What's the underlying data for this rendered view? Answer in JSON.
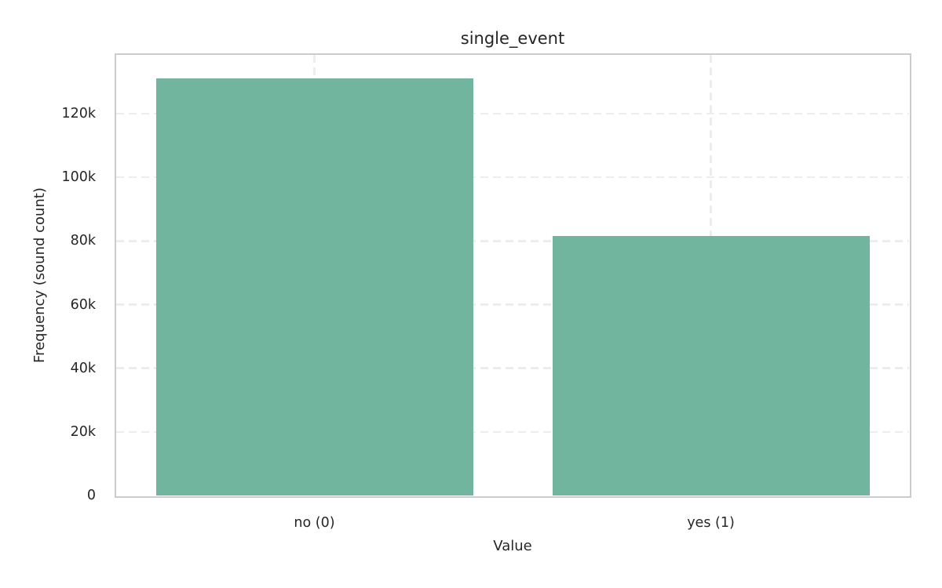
{
  "chart_data": {
    "type": "bar",
    "title": "single_event",
    "xlabel": "Value",
    "ylabel": "Frequency (sound count)",
    "categories": [
      "no (0)",
      "yes (1)"
    ],
    "values": [
      131000,
      81500
    ],
    "ylim": [
      0,
      138500
    ],
    "yticks": [
      0,
      20000,
      40000,
      60000,
      80000,
      100000,
      120000
    ],
    "ytick_labels": [
      "0",
      "20k",
      "40k",
      "60k",
      "80k",
      "100k",
      "120k"
    ],
    "grid": true,
    "grid_style": "dashed",
    "bar_width_fraction": 0.8,
    "colors": {
      "bar": "#71b59f",
      "grid": "#ededed",
      "spine": "#cccccc",
      "text": "#262626",
      "background": "#ffffff"
    }
  }
}
